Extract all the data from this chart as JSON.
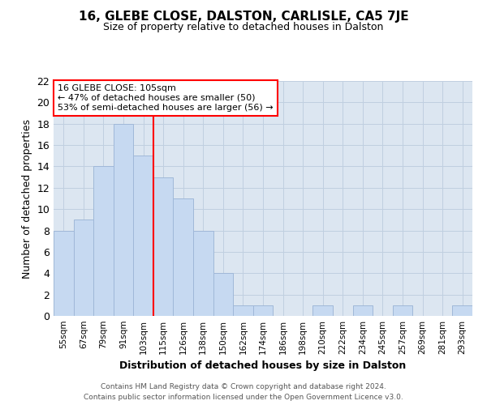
{
  "title": "16, GLEBE CLOSE, DALSTON, CARLISLE, CA5 7JE",
  "subtitle": "Size of property relative to detached houses in Dalston",
  "xlabel": "Distribution of detached houses by size in Dalston",
  "ylabel": "Number of detached properties",
  "footer_line1": "Contains HM Land Registry data © Crown copyright and database right 2024.",
  "footer_line2": "Contains public sector information licensed under the Open Government Licence v3.0.",
  "categories": [
    "55sqm",
    "67sqm",
    "79sqm",
    "91sqm",
    "103sqm",
    "115sqm",
    "126sqm",
    "138sqm",
    "150sqm",
    "162sqm",
    "174sqm",
    "186sqm",
    "198sqm",
    "210sqm",
    "222sqm",
    "234sqm",
    "245sqm",
    "257sqm",
    "269sqm",
    "281sqm",
    "293sqm"
  ],
  "values": [
    8,
    9,
    14,
    18,
    15,
    13,
    11,
    8,
    4,
    1,
    1,
    0,
    0,
    1,
    0,
    1,
    0,
    1,
    0,
    0,
    1
  ],
  "bar_color": "#c6d9f1",
  "bar_edge_color": "#a0b8d8",
  "property_line_x": 4.5,
  "annotation_box_text": "16 GLEBE CLOSE: 105sqm\n← 47% of detached houses are smaller (50)\n53% of semi-detached houses are larger (56) →",
  "annotation_box_color": "white",
  "annotation_box_edge_color": "red",
  "vline_color": "red",
  "ylim": [
    0,
    22
  ],
  "yticks": [
    0,
    2,
    4,
    6,
    8,
    10,
    12,
    14,
    16,
    18,
    20,
    22
  ],
  "grid_color": "#c0cfe0",
  "background_color": "#dce6f1"
}
